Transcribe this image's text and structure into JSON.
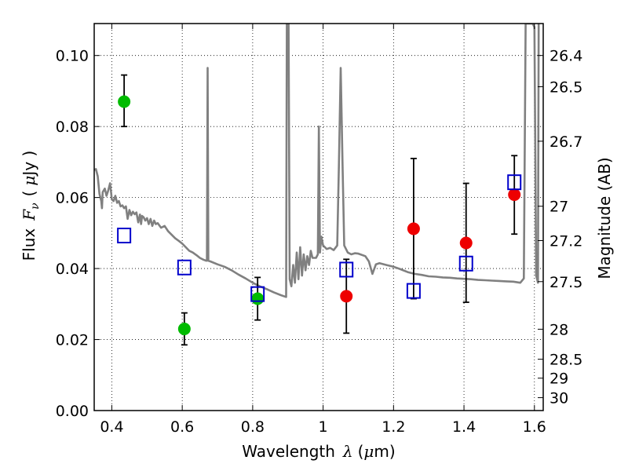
{
  "chart_data": {
    "type": "scatter",
    "xlabel": {
      "text": "Wavelength",
      "symbol": "λ",
      "unit_open": "(",
      "unit_mu": "μ",
      "unit_rest": "m)"
    },
    "ylabel": {
      "text": "Flux",
      "symbol": "F",
      "subscript": "ν",
      "unit_open": "(",
      "unit_mu": "μ",
      "unit_rest": "Jy )"
    },
    "y2label": "Magnitude (AB)",
    "xlim": [
      0.35,
      1.625
    ],
    "ylim": [
      0.0,
      0.109
    ],
    "grid": true,
    "x_ticks": [
      {
        "value": 0.4,
        "label": "0.4"
      },
      {
        "value": 0.6,
        "label": "0.6"
      },
      {
        "value": 0.8,
        "label": "0.8"
      },
      {
        "value": 1.0,
        "label": "1"
      },
      {
        "value": 1.2,
        "label": "1.2"
      },
      {
        "value": 1.4,
        "label": "1.4"
      },
      {
        "value": 1.6,
        "label": "1.6"
      }
    ],
    "y_ticks": [
      {
        "value": 0.0,
        "label": "0.00"
      },
      {
        "value": 0.02,
        "label": "0.02"
      },
      {
        "value": 0.04,
        "label": "0.04"
      },
      {
        "value": 0.06,
        "label": "0.06"
      },
      {
        "value": 0.08,
        "label": "0.08"
      },
      {
        "value": 0.1,
        "label": "0.10"
      }
    ],
    "mag_ticks": [
      {
        "value": 26.4,
        "label": "26.4"
      },
      {
        "value": 26.5,
        "label": "26.5"
      },
      {
        "value": 26.7,
        "label": "26.7"
      },
      {
        "value": 27.0,
        "label": "27"
      },
      {
        "value": 27.2,
        "label": "27.2"
      },
      {
        "value": 27.5,
        "label": "27.5"
      },
      {
        "value": 28.0,
        "label": "28"
      },
      {
        "value": 28.5,
        "label": "28.5"
      },
      {
        "value": 29.0,
        "label": "29"
      },
      {
        "value": 30.0,
        "label": "30"
      }
    ],
    "series": [
      {
        "marker": "circle",
        "color": "#00bb00",
        "errorbars": true,
        "points": [
          {
            "x": 0.435,
            "y": 0.087,
            "yerr_low": 0.08,
            "yerr_high": 0.0945
          },
          {
            "x": 0.606,
            "y": 0.023,
            "yerr_low": 0.0185,
            "yerr_high": 0.0275
          },
          {
            "x": 0.814,
            "y": 0.0315,
            "yerr_low": 0.0255,
            "yerr_high": 0.0375
          }
        ]
      },
      {
        "marker": "circle",
        "color": "#ee0000",
        "errorbars": true,
        "points": [
          {
            "x": 1.066,
            "y": 0.0322,
            "yerr_low": 0.0218,
            "yerr_high": 0.0426
          },
          {
            "x": 1.257,
            "y": 0.0512,
            "yerr_low": 0.0315,
            "yerr_high": 0.071
          },
          {
            "x": 1.406,
            "y": 0.0472,
            "yerr_low": 0.0305,
            "yerr_high": 0.064
          },
          {
            "x": 1.543,
            "y": 0.0608,
            "yerr_low": 0.0497,
            "yerr_high": 0.0718
          }
        ]
      },
      {
        "marker": "square",
        "color": "#0000cc",
        "errorbars": false,
        "points": [
          {
            "x": 0.435,
            "y": 0.0493
          },
          {
            "x": 0.606,
            "y": 0.0403
          },
          {
            "x": 0.814,
            "y": 0.0328
          },
          {
            "x": 1.066,
            "y": 0.0397
          },
          {
            "x": 1.257,
            "y": 0.0337
          },
          {
            "x": 1.406,
            "y": 0.0414
          },
          {
            "x": 1.543,
            "y": 0.0643
          }
        ]
      }
    ],
    "template_spectrum": {
      "color": "#808080",
      "points": [
        [
          0.35,
          0.0678
        ],
        [
          0.355,
          0.068
        ],
        [
          0.36,
          0.066
        ],
        [
          0.365,
          0.061
        ],
        [
          0.37,
          0.059
        ],
        [
          0.372,
          0.057
        ],
        [
          0.374,
          0.0615
        ],
        [
          0.38,
          0.0625
        ],
        [
          0.385,
          0.0605
        ],
        [
          0.39,
          0.062
        ],
        [
          0.395,
          0.064
        ],
        [
          0.398,
          0.0615
        ],
        [
          0.4,
          0.0595
        ],
        [
          0.405,
          0.059
        ],
        [
          0.41,
          0.0605
        ],
        [
          0.415,
          0.0585
        ],
        [
          0.42,
          0.059
        ],
        [
          0.425,
          0.0575
        ],
        [
          0.43,
          0.0578
        ],
        [
          0.435,
          0.057
        ],
        [
          0.44,
          0.0575
        ],
        [
          0.445,
          0.054
        ],
        [
          0.45,
          0.0565
        ],
        [
          0.455,
          0.055
        ],
        [
          0.46,
          0.056
        ],
        [
          0.465,
          0.0553
        ],
        [
          0.47,
          0.0558
        ],
        [
          0.475,
          0.053
        ],
        [
          0.48,
          0.0552
        ],
        [
          0.483,
          0.0525
        ],
        [
          0.486,
          0.0548
        ],
        [
          0.49,
          0.0545
        ],
        [
          0.495,
          0.0535
        ],
        [
          0.5,
          0.0542
        ],
        [
          0.505,
          0.0525
        ],
        [
          0.51,
          0.054
        ],
        [
          0.515,
          0.052
        ],
        [
          0.52,
          0.0535
        ],
        [
          0.525,
          0.0525
        ],
        [
          0.53,
          0.0528
        ],
        [
          0.54,
          0.0515
        ],
        [
          0.55,
          0.052
        ],
        [
          0.56,
          0.0505
        ],
        [
          0.57,
          0.0495
        ],
        [
          0.58,
          0.0485
        ],
        [
          0.59,
          0.0478
        ],
        [
          0.6,
          0.047
        ],
        [
          0.61,
          0.046
        ],
        [
          0.62,
          0.045
        ],
        [
          0.63,
          0.0445
        ],
        [
          0.64,
          0.0438
        ],
        [
          0.65,
          0.043
        ],
        [
          0.66,
          0.0425
        ],
        [
          0.668,
          0.0422
        ],
        [
          0.67,
          0.0422
        ],
        [
          0.672,
          0.0965
        ],
        [
          0.674,
          0.0422
        ],
        [
          0.68,
          0.042
        ],
        [
          0.7,
          0.0412
        ],
        [
          0.72,
          0.0405
        ],
        [
          0.74,
          0.0395
        ],
        [
          0.76,
          0.0383
        ],
        [
          0.78,
          0.0372
        ],
        [
          0.8,
          0.036
        ],
        [
          0.82,
          0.035
        ],
        [
          0.84,
          0.0342
        ],
        [
          0.86,
          0.0333
        ],
        [
          0.88,
          0.0325
        ],
        [
          0.895,
          0.032
        ],
        [
          0.897,
          0.109
        ],
        [
          0.902,
          0.109
        ],
        [
          0.905,
          0.037
        ],
        [
          0.91,
          0.035
        ],
        [
          0.915,
          0.041
        ],
        [
          0.92,
          0.036
        ],
        [
          0.925,
          0.0445
        ],
        [
          0.93,
          0.037
        ],
        [
          0.935,
          0.046
        ],
        [
          0.94,
          0.038
        ],
        [
          0.945,
          0.044
        ],
        [
          0.95,
          0.0395
        ],
        [
          0.955,
          0.0435
        ],
        [
          0.96,
          0.041
        ],
        [
          0.965,
          0.045
        ],
        [
          0.97,
          0.043
        ],
        [
          0.98,
          0.043
        ],
        [
          0.985,
          0.044
        ],
        [
          0.988,
          0.08
        ],
        [
          0.991,
          0.0445
        ],
        [
          0.995,
          0.049
        ],
        [
          1.0,
          0.0465
        ],
        [
          1.005,
          0.046
        ],
        [
          1.01,
          0.0455
        ],
        [
          1.02,
          0.0458
        ],
        [
          1.03,
          0.0452
        ],
        [
          1.04,
          0.0465
        ],
        [
          1.045,
          0.07
        ],
        [
          1.05,
          0.0965
        ],
        [
          1.055,
          0.07
        ],
        [
          1.06,
          0.0465
        ],
        [
          1.07,
          0.0445
        ],
        [
          1.08,
          0.044
        ],
        [
          1.09,
          0.0443
        ],
        [
          1.1,
          0.0442
        ],
        [
          1.12,
          0.0435
        ],
        [
          1.13,
          0.042
        ],
        [
          1.14,
          0.0385
        ],
        [
          1.15,
          0.0412
        ],
        [
          1.16,
          0.0415
        ],
        [
          1.18,
          0.041
        ],
        [
          1.2,
          0.0405
        ],
        [
          1.22,
          0.0398
        ],
        [
          1.24,
          0.039
        ],
        [
          1.26,
          0.0385
        ],
        [
          1.28,
          0.0382
        ],
        [
          1.3,
          0.0378
        ],
        [
          1.32,
          0.0377
        ],
        [
          1.34,
          0.0375
        ],
        [
          1.36,
          0.0374
        ],
        [
          1.38,
          0.0372
        ],
        [
          1.4,
          0.0371
        ],
        [
          1.42,
          0.037
        ],
        [
          1.44,
          0.0368
        ],
        [
          1.46,
          0.0367
        ],
        [
          1.48,
          0.0366
        ],
        [
          1.5,
          0.0365
        ],
        [
          1.52,
          0.0364
        ],
        [
          1.54,
          0.0363
        ],
        [
          1.56,
          0.036
        ],
        [
          1.57,
          0.0372
        ],
        [
          1.575,
          0.109
        ],
        [
          1.58,
          0.109
        ],
        [
          1.585,
          0.109
        ],
        [
          1.595,
          0.109
        ],
        [
          1.6,
          0.108
        ],
        [
          1.605,
          0.038
        ],
        [
          1.61,
          0.036
        ],
        [
          1.612,
          0.109
        ]
      ]
    }
  }
}
